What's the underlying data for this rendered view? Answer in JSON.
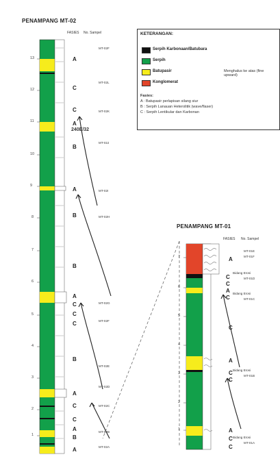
{
  "colors": {
    "coal": "#111111",
    "shale": "#12a04a",
    "sand": "#f6ec1c",
    "cong": "#e2452a"
  },
  "left": {
    "title": "PENAMPANG MT-02",
    "fasies_header": "FASIES",
    "sample_header": "No. Sampel",
    "depth_ticks": [
      "13",
      "12",
      "11",
      "10",
      "9",
      "8",
      "7",
      "6",
      "5",
      "4",
      "3",
      "2",
      "1"
    ],
    "facies": [
      "A",
      "C",
      "C",
      "A",
      "B",
      "A",
      "B",
      "B",
      "A",
      "C",
      "C",
      "C",
      "B",
      "A",
      "C",
      "C",
      "B",
      "A",
      "A"
    ],
    "samples": [
      "MT-02F",
      "MT-02L",
      "MT-02K",
      "MT-02J",
      "MT-02I",
      "MT-02H",
      "MT-02G",
      "MT-02F",
      "MT-02E",
      "MT-02D",
      "MT-02C",
      "MT-02B",
      "MT-02A"
    ],
    "strike": "240E/32"
  },
  "legend": {
    "title": "KETERANGAN:",
    "items": [
      {
        "label": "Serpih Karbonaan/Batubara",
        "color": "coal"
      },
      {
        "label": "Serpih",
        "color": "shale"
      },
      {
        "label": "Batupasir",
        "color": "sand"
      },
      {
        "label": "Konglomerat",
        "color": "cong"
      }
    ],
    "fining_note": "Menghalus ke atas (fine upward)",
    "fasies_title": "Fasies:",
    "fasies_items": [
      "A : Batupasir perlapisan silang siur",
      "B : Serpih Lanauan Heterolitik (wave/flaser)",
      "C : Serpih Lentikular dan Karbonan"
    ]
  },
  "right": {
    "title": "PENAMPANG MT-01",
    "fasies_header": "FASIES",
    "sample_header": "No. Sampel",
    "depth_ticks": [
      "7",
      "6",
      "5",
      "4",
      "3",
      "2",
      "1"
    ],
    "facies": [
      "A",
      "C",
      "C",
      "A",
      "C",
      "C",
      "A",
      "C",
      "C",
      "A",
      "C",
      "C"
    ],
    "samples": [
      "MT-01E",
      "MT-01F",
      "MT-01D",
      "MT-01C",
      "MT-01B",
      "MT-01A"
    ],
    "erosion_label": "Bidang Erosi"
  }
}
